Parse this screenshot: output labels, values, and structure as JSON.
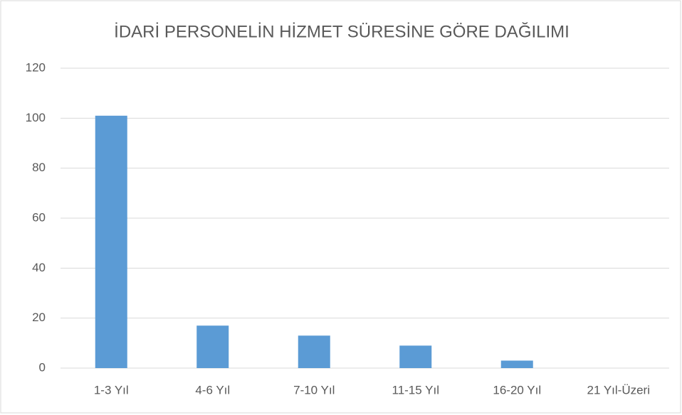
{
  "chart_data": {
    "type": "bar",
    "title": "İDARİ PERSONELİN HİZMET SÜRESİNE GÖRE DAĞILIMI",
    "categories": [
      "1-3 Yıl",
      "4-6 Yıl",
      "7-10 Yıl",
      "11-15 Yıl",
      "16-20 Yıl",
      "21 Yıl-Üzeri"
    ],
    "values": [
      101,
      17,
      13,
      9,
      3,
      0
    ],
    "color": "#5b9bd5",
    "ylim": [
      0,
      120
    ],
    "yticks": [
      0,
      20,
      40,
      60,
      80,
      100,
      120
    ],
    "grid": true
  }
}
